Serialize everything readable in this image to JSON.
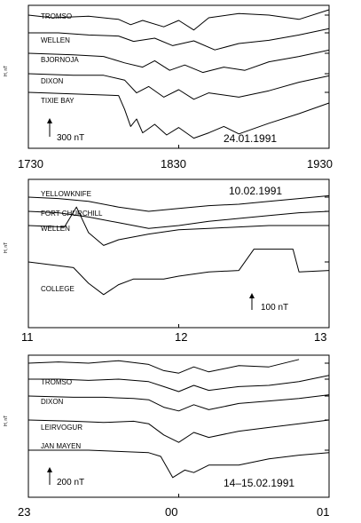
{
  "chart_data": [
    {
      "type": "line",
      "date": "24.01.1991",
      "ylabel": "H, nT",
      "scale_bar": "300 nT",
      "x_ticks": [
        "1730",
        "1830",
        "1930"
      ],
      "series": [
        {
          "name": "TROMSO",
          "x": [
            0,
            0.08,
            0.2,
            0.3,
            0.34,
            0.38,
            0.45,
            0.5,
            0.55,
            0.6,
            0.7,
            0.8,
            0.9,
            1
          ],
          "y": [
            0,
            -0.5,
            -0.2,
            -0.8,
            -1.8,
            -1,
            -2.2,
            -1,
            -2.8,
            -0.5,
            0.3,
            0,
            -0.8,
            1
          ]
        },
        {
          "name": "WELLEN",
          "x": [
            0,
            0.1,
            0.2,
            0.3,
            0.35,
            0.42,
            0.48,
            0.55,
            0.62,
            0.7,
            0.8,
            0.9,
            1
          ],
          "y": [
            0,
            0,
            -0.4,
            -0.6,
            -1.6,
            -1,
            -2.4,
            -1.5,
            -3.2,
            -2,
            -1.4,
            -0.4,
            0.8
          ]
        },
        {
          "name": "BJORNOJA",
          "x": [
            0,
            0.15,
            0.25,
            0.32,
            0.38,
            0.42,
            0.47,
            0.52,
            0.58,
            0.65,
            0.72,
            0.8,
            0.9,
            1
          ],
          "y": [
            0,
            -0.3,
            -0.6,
            -1.8,
            -2.6,
            -1.4,
            -3.2,
            -2.2,
            -3.6,
            -2.6,
            -3.2,
            -1.6,
            -0.6,
            0.6
          ]
        },
        {
          "name": "DIXON",
          "x": [
            0,
            0.15,
            0.25,
            0.32,
            0.36,
            0.4,
            0.45,
            0.5,
            0.55,
            0.6,
            0.7,
            0.8,
            0.9,
            1
          ],
          "y": [
            0,
            -0.3,
            -0.3,
            -1.2,
            -3.6,
            -2.4,
            -4.4,
            -3,
            -4.8,
            -3.6,
            -4.4,
            -3.2,
            -1.6,
            -0.4
          ]
        },
        {
          "name": "TIXIE BAY",
          "x": [
            0,
            0.2,
            0.3,
            0.32,
            0.34,
            0.36,
            0.38,
            0.42,
            0.46,
            0.5,
            0.55,
            0.6,
            0.65,
            0.7,
            0.8,
            0.9,
            1
          ],
          "y": [
            0,
            -0.4,
            -0.6,
            -3.2,
            -6.4,
            -5,
            -7.6,
            -6,
            -8,
            -6.6,
            -8.6,
            -7.6,
            -6.4,
            -7.8,
            -5.8,
            -4,
            -2
          ]
        }
      ]
    },
    {
      "type": "line",
      "date": "10.02.1991",
      "ylabel": "H, nT",
      "scale_bar": "100 nT",
      "x_ticks": [
        "11",
        "12",
        "13"
      ],
      "series": [
        {
          "name": "YELLOWKNIFE",
          "x": [
            0,
            0.1,
            0.2,
            0.3,
            0.4,
            0.5,
            0.6,
            0.7,
            0.8,
            0.9,
            1
          ],
          "y": [
            0,
            -0.2,
            -0.6,
            -1.4,
            -2,
            -1.6,
            -1.2,
            -1,
            -0.6,
            -0.2,
            0.2
          ]
        },
        {
          "name": "FORT CHURCHILL",
          "x": [
            0,
            0.1,
            0.2,
            0.3,
            0.4,
            0.5,
            0.6,
            0.7,
            0.8,
            0.9,
            1
          ],
          "y": [
            0,
            -0.2,
            -0.8,
            -1.6,
            -2.4,
            -2,
            -1.4,
            -1,
            -0.6,
            -0.2,
            0
          ]
        },
        {
          "name": "WELLEN",
          "x": [
            0,
            0.12,
            0.16,
            0.2,
            0.25,
            0.3,
            0.4,
            0.5,
            0.6,
            0.7,
            0.8,
            0.9,
            1
          ],
          "y": [
            0,
            -0.2,
            2.6,
            -1,
            -2.8,
            -2,
            -1.2,
            -0.6,
            -0.4,
            -0.2,
            0,
            0,
            0
          ]
        },
        {
          "name": "COLLEGE",
          "x": [
            0,
            0.15,
            0.2,
            0.25,
            0.3,
            0.35,
            0.45,
            0.5,
            0.6,
            0.7,
            0.75,
            0.88,
            0.9,
            1
          ],
          "y": [
            0,
            -0.8,
            -3,
            -4.6,
            -3.2,
            -2.4,
            -2.4,
            -2,
            -1.4,
            -1.2,
            1.8,
            1.8,
            -1.4,
            -1.2
          ]
        }
      ]
    },
    {
      "type": "line",
      "date": "14–15.02.1991",
      "ylabel": "H, nT",
      "scale_bar": "200 nT",
      "x_ticks": [
        "23",
        "00",
        "01"
      ],
      "series": [
        {
          "name": "",
          "x": [
            0,
            0.1,
            0.2,
            0.3,
            0.4,
            0.45,
            0.5,
            0.55,
            0.6,
            0.7,
            0.8,
            0.9
          ],
          "y": [
            0,
            0.2,
            0,
            0.4,
            -0.2,
            -1.2,
            -1.6,
            -0.6,
            -1.4,
            -0.4,
            -0.6,
            0.6
          ]
        },
        {
          "name": "TROMSO",
          "x": [
            0,
            0.1,
            0.2,
            0.3,
            0.4,
            0.45,
            0.5,
            0.55,
            0.6,
            0.7,
            0.8,
            0.9,
            1
          ],
          "y": [
            0,
            0,
            -0.2,
            0,
            -0.4,
            -1.2,
            -2,
            -1,
            -1.8,
            -1.2,
            -1,
            -0.4,
            0.6
          ]
        },
        {
          "name": "DIXON",
          "x": [
            0,
            0.15,
            0.25,
            0.35,
            0.4,
            0.45,
            0.5,
            0.55,
            0.6,
            0.7,
            0.8,
            0.9,
            1
          ],
          "y": [
            0,
            -0.2,
            -0.2,
            -0.4,
            -0.6,
            -1.8,
            -2.4,
            -1.4,
            -2.2,
            -1.2,
            -0.8,
            -0.4,
            0.2
          ]
        },
        {
          "name": "LEIRVOGUR",
          "x": [
            0,
            0.15,
            0.25,
            0.35,
            0.4,
            0.45,
            0.5,
            0.55,
            0.6,
            0.7,
            0.8,
            0.9,
            1
          ],
          "y": [
            0,
            -0.2,
            -0.4,
            -0.2,
            -0.6,
            -2.4,
            -3.6,
            -2,
            -2.8,
            -1.8,
            -1.2,
            -0.6,
            0
          ]
        },
        {
          "name": "JAN MAYEN",
          "x": [
            0,
            0.2,
            0.3,
            0.4,
            0.44,
            0.48,
            0.52,
            0.55,
            0.6,
            0.7,
            0.8,
            0.9,
            1
          ],
          "y": [
            0,
            0,
            -0.2,
            -0.4,
            -1,
            -4.4,
            -3.2,
            -3.6,
            -2.4,
            -2.4,
            -1.4,
            -0.8,
            -0.4
          ]
        }
      ]
    }
  ]
}
